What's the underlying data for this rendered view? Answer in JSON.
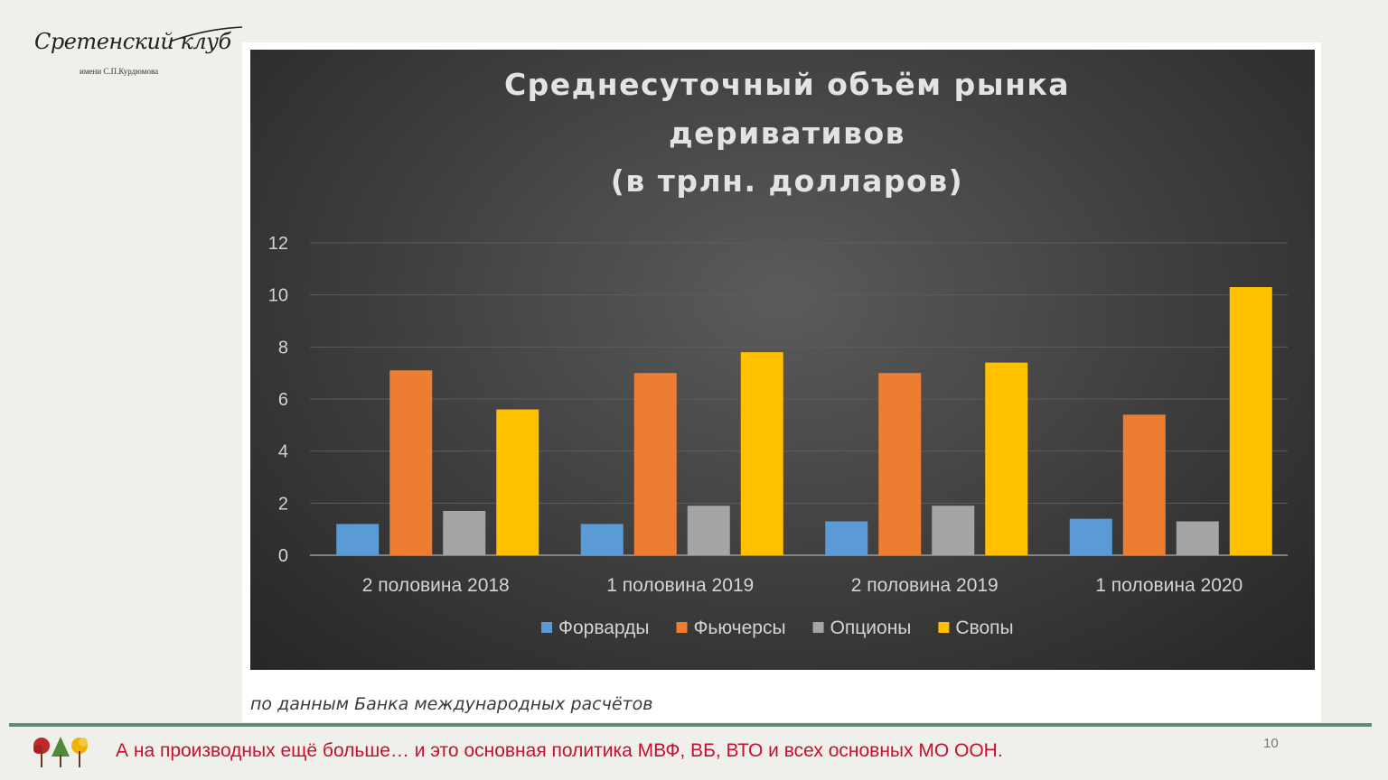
{
  "logo": {
    "title": "Сретенский клуб",
    "subtitle": "имени С.П.Курдюмова"
  },
  "chart_data": {
    "type": "bar",
    "title_lines": [
      "Среднесуточный объём рынка",
      "деривативов",
      "(в трлн. долларов)"
    ],
    "categories": [
      "2 половина 2018",
      "1 половина 2019",
      "2 половина 2019",
      "1 половина 2020"
    ],
    "series": [
      {
        "name": "Форварды",
        "color": "#5b9bd5",
        "values": [
          1.2,
          1.2,
          1.3,
          1.4
        ]
      },
      {
        "name": "Фьючерсы",
        "color": "#ed7d31",
        "values": [
          7.1,
          7.0,
          7.0,
          5.4
        ]
      },
      {
        "name": "Опционы",
        "color": "#a5a5a5",
        "values": [
          1.7,
          1.9,
          1.9,
          1.3
        ]
      },
      {
        "name": "Свопы",
        "color": "#ffc000",
        "values": [
          5.6,
          7.8,
          7.4,
          10.3
        ]
      }
    ],
    "yticks": [
      0,
      2,
      4,
      6,
      8,
      10,
      12
    ],
    "ylim": [
      0,
      12
    ],
    "xlabel": "",
    "ylabel": "",
    "grid": true,
    "legend": "bottom"
  },
  "source": "по данным Банка международных расчётов",
  "footer": {
    "text": "А на производных ещё больше…  и это основная политика МВФ, ВБ, ВТО и всех основных МО ООН.",
    "page_number": "10"
  }
}
